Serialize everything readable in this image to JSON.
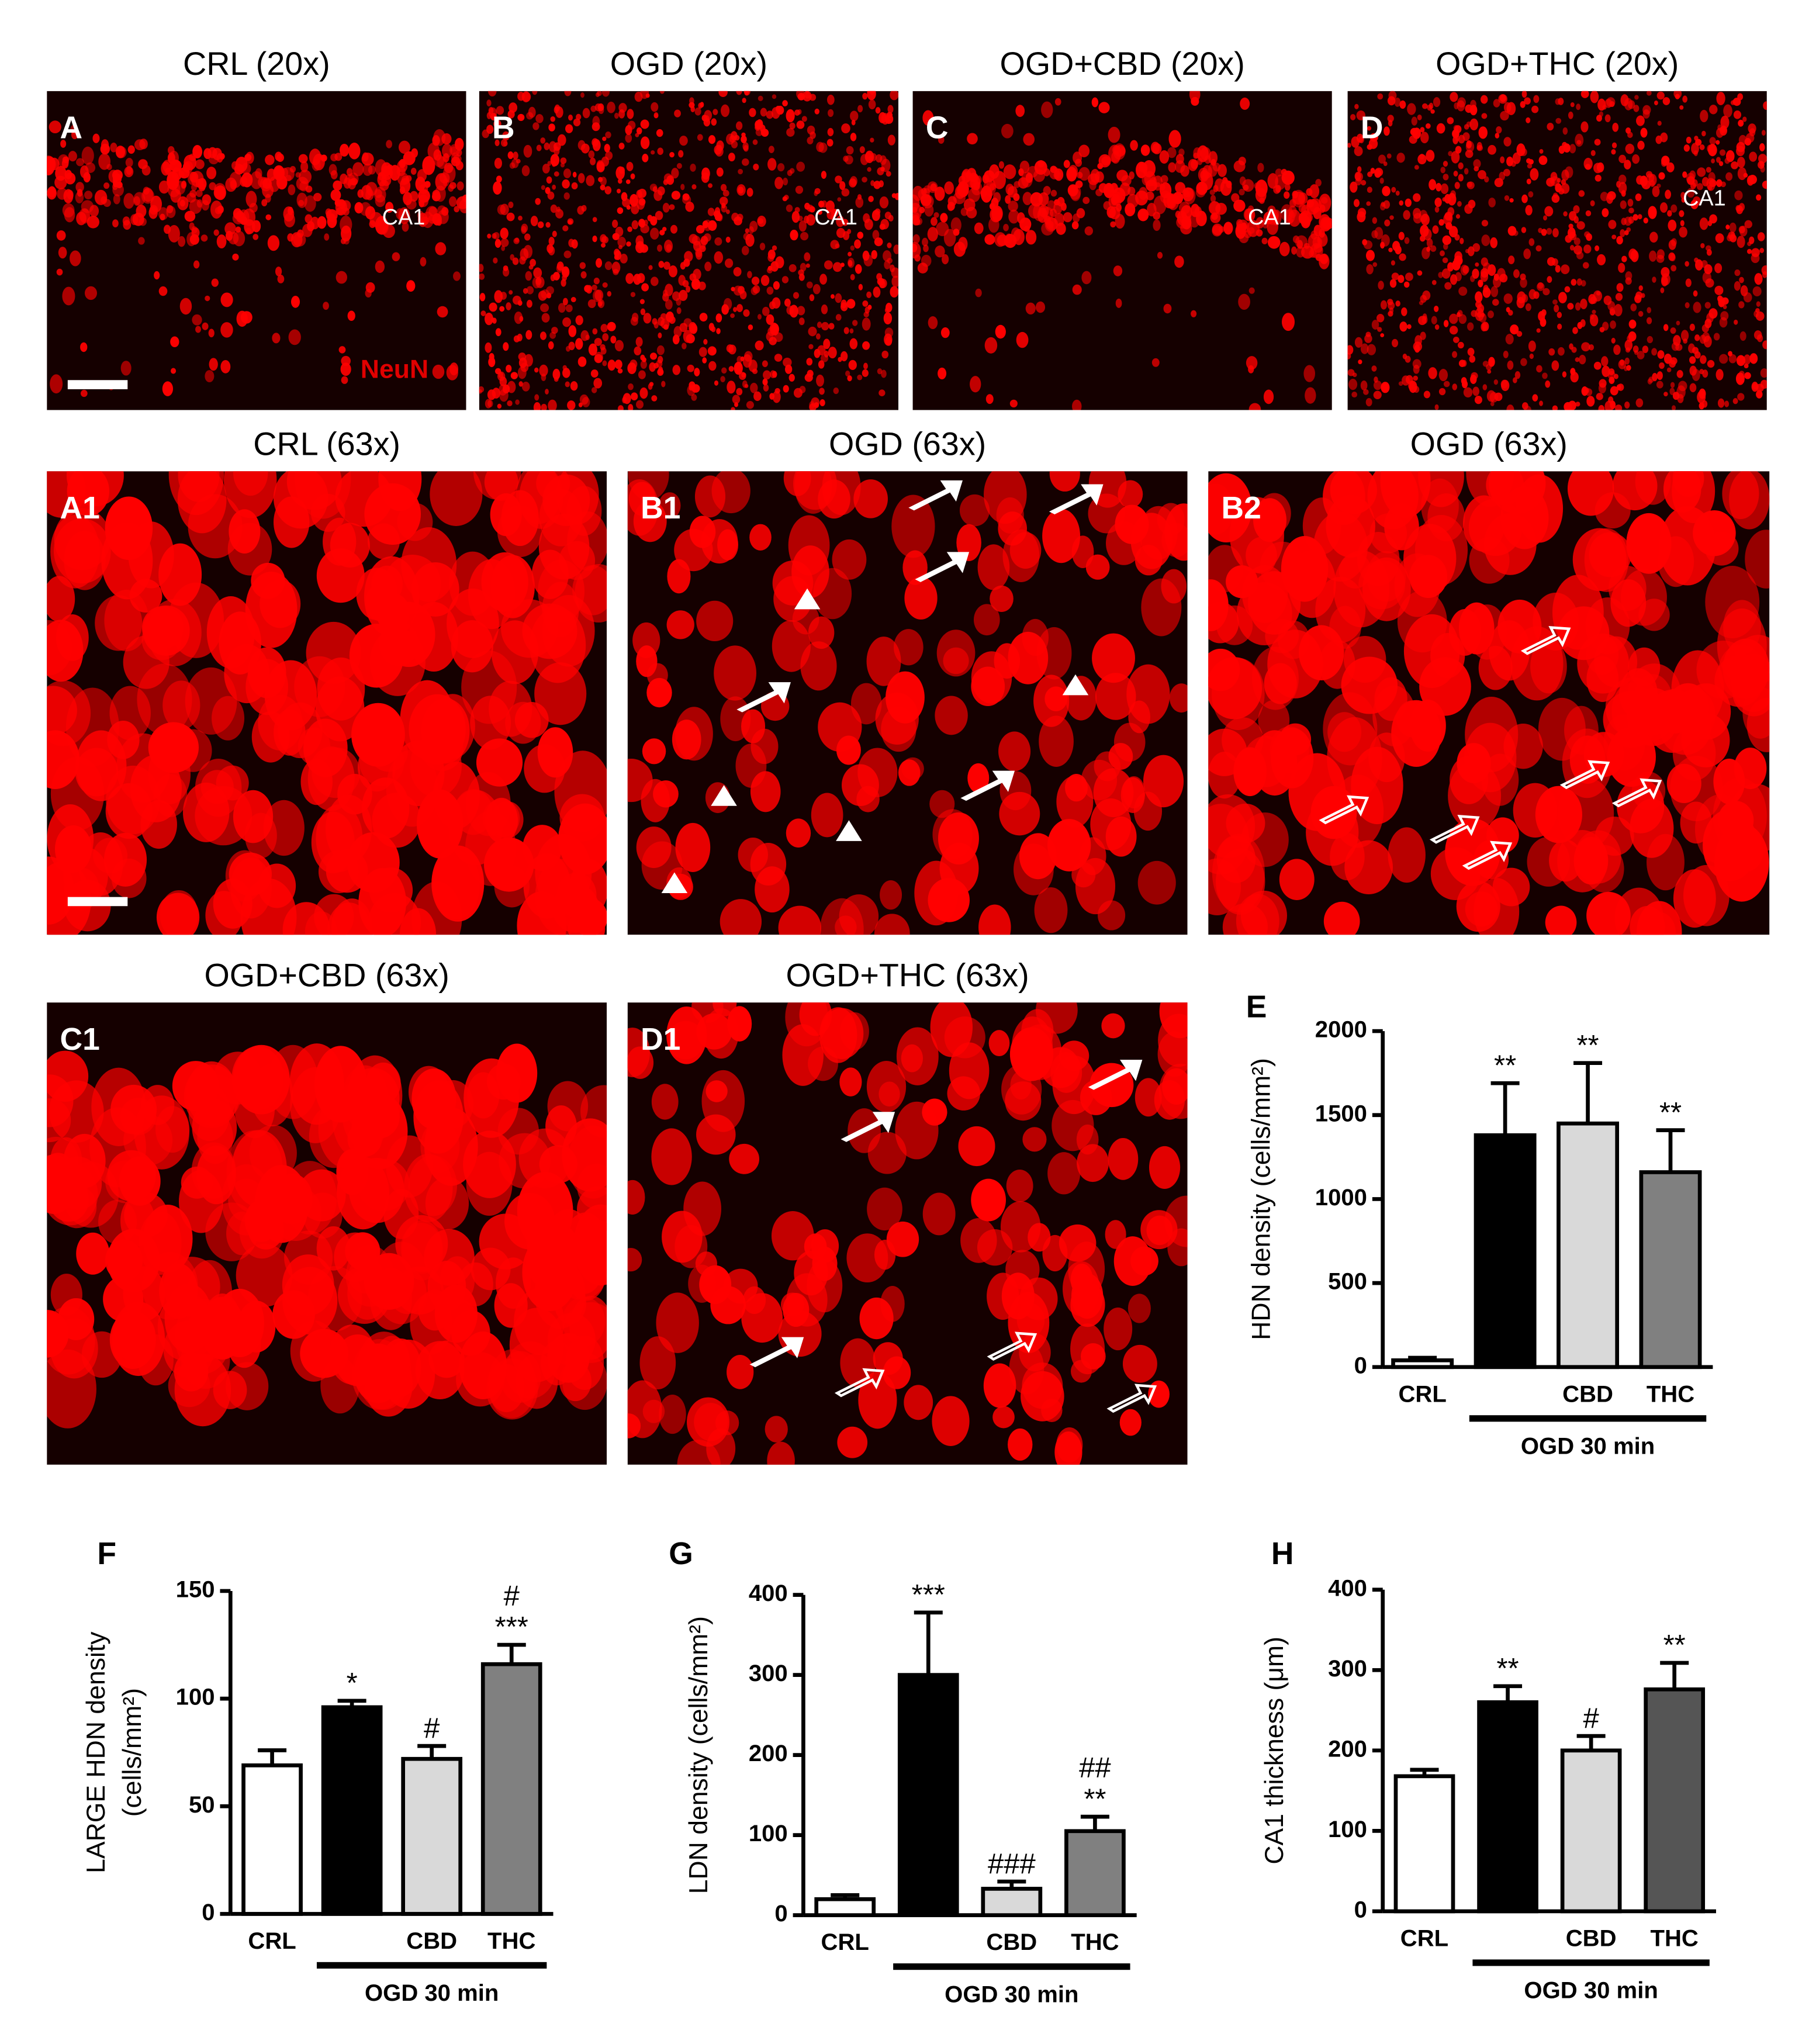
{
  "micrographs": [
    {
      "title": "CRL (20x)",
      "letter": "A",
      "region": "CA1",
      "stain": "NeuN"
    },
    {
      "title": "OGD (20x)",
      "letter": "B",
      "region": "CA1"
    },
    {
      "title": "OGD+CBD (20x)",
      "letter": "C",
      "region": "CA1"
    },
    {
      "title": "OGD+THC (20x)",
      "letter": "D",
      "region": "CA1"
    },
    {
      "title": "CRL (63x)",
      "letter": "A1"
    },
    {
      "title": "OGD (63x)",
      "letter": "B1"
    },
    {
      "title": "OGD (63x)",
      "letter": "B2"
    },
    {
      "title": "OGD+CBD (63x)",
      "letter": "C1"
    },
    {
      "title": "OGD+THC (63x)",
      "letter": "D1"
    }
  ],
  "chart_data": [
    {
      "type": "bar",
      "panel": "E",
      "ylabel": [
        "HDN density (cells/mm²)"
      ],
      "categories": [
        "CRL",
        null,
        "CBD",
        "THC"
      ],
      "group_label": "OGD 30 min",
      "values": [
        40,
        1380,
        1450,
        1160
      ],
      "errors": [
        15,
        310,
        360,
        250
      ],
      "annotations": [
        null,
        [
          "**"
        ],
        [
          "**"
        ],
        [
          "**"
        ]
      ],
      "colors": [
        "#ffffff",
        "#000000",
        "#d9d9d9",
        "#808080"
      ],
      "ylim": [
        0,
        2000
      ],
      "yticks": [
        0,
        500,
        1000,
        1500,
        2000
      ]
    },
    {
      "type": "bar",
      "panel": "F",
      "ylabel": [
        "LARGE HDN density",
        "(cells/mm²)"
      ],
      "categories": [
        "CRL",
        null,
        "CBD",
        "THC"
      ],
      "group_label": "OGD 30 min",
      "values": [
        69,
        96,
        72,
        116
      ],
      "errors": [
        7,
        3,
        6,
        9
      ],
      "annotations": [
        null,
        [
          "*"
        ],
        [
          "#"
        ],
        [
          "#",
          "***"
        ]
      ],
      "colors": [
        "#ffffff",
        "#000000",
        "#d9d9d9",
        "#808080"
      ],
      "ylim": [
        0,
        150
      ],
      "yticks": [
        0,
        50,
        100,
        150
      ]
    },
    {
      "type": "bar",
      "panel": "G",
      "ylabel": [
        "LDN density (cells/mm²)"
      ],
      "categories": [
        "CRL",
        null,
        "CBD",
        "THC"
      ],
      "group_label": "OGD 30 min",
      "values": [
        20,
        300,
        33,
        105
      ],
      "errors": [
        5,
        78,
        9,
        18
      ],
      "annotations": [
        null,
        [
          "***"
        ],
        [
          "###"
        ],
        [
          "##",
          "**"
        ]
      ],
      "colors": [
        "#ffffff",
        "#000000",
        "#d9d9d9",
        "#808080"
      ],
      "ylim": [
        0,
        400
      ],
      "yticks": [
        0,
        100,
        200,
        300,
        400
      ]
    },
    {
      "type": "bar",
      "panel": "H",
      "ylabel": [
        "CA1 thickness (μm)"
      ],
      "categories": [
        "CRL",
        null,
        "CBD",
        "THC"
      ],
      "group_label": "OGD 30 min",
      "values": [
        168,
        260,
        200,
        276
      ],
      "errors": [
        8,
        20,
        18,
        33
      ],
      "annotations": [
        null,
        [
          "**"
        ],
        [
          "#"
        ],
        [
          "**"
        ]
      ],
      "colors": [
        "#ffffff",
        "#000000",
        "#d9d9d9",
        "#555555"
      ],
      "ylim": [
        0,
        400
      ],
      "yticks": [
        0,
        100,
        200,
        300,
        400
      ]
    }
  ]
}
